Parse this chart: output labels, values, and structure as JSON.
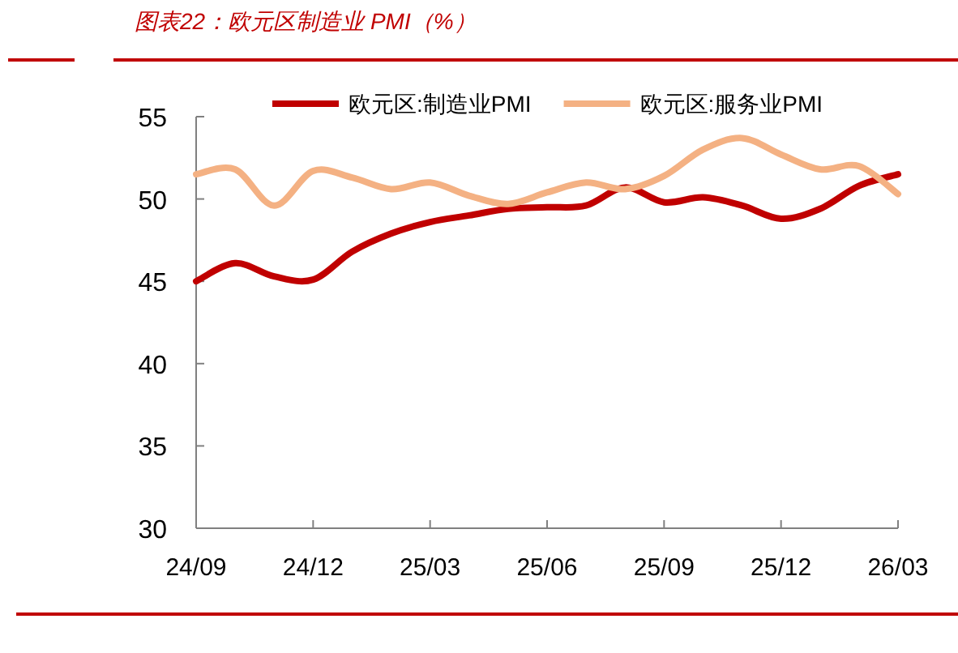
{
  "chart_data": {
    "type": "line",
    "title": "图表22：欧元区制造业 PMI（%）",
    "categories": [
      "24/09",
      null,
      null,
      "24/12",
      null,
      null,
      "25/03",
      null,
      null,
      "25/06",
      null,
      null,
      "25/09",
      null,
      null,
      "25/12",
      null,
      null,
      "26/03"
    ],
    "series": [
      {
        "name": "欧元区:制造业PMI",
        "color": "#c00000",
        "values": [
          45.0,
          46.1,
          45.3,
          45.1,
          46.8,
          47.9,
          48.6,
          49.0,
          49.4,
          49.5,
          49.6,
          50.7,
          49.8,
          50.1,
          49.6,
          48.8,
          49.4,
          50.8,
          51.5
        ]
      },
      {
        "name": "欧元区:服务业PMI",
        "color": "#f4b183",
        "values": [
          51.5,
          51.8,
          49.6,
          51.7,
          51.3,
          50.6,
          51.0,
          50.2,
          49.7,
          50.4,
          51.0,
          50.6,
          51.4,
          53.0,
          53.7,
          52.7,
          51.8,
          52.0,
          50.3
        ]
      }
    ],
    "ylim": [
      30,
      55
    ],
    "yticks": [
      30,
      35,
      40,
      45,
      50,
      55
    ],
    "grid": false,
    "legend": "top",
    "marker": "none",
    "line_style": "solid"
  }
}
